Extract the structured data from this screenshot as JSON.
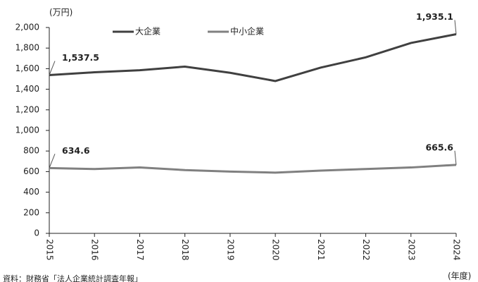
{
  "chart_data": {
    "type": "line",
    "y_unit_label": "(万円)",
    "x_unit_label": "(年度)",
    "source": "資料：財務省「法人企業統計調査年報」",
    "categories": [
      "2015",
      "2016",
      "2017",
      "2018",
      "2019",
      "2020",
      "2021",
      "2022",
      "2023",
      "2024"
    ],
    "series": [
      {
        "name": "大企業",
        "color": "#404040",
        "values": [
          1537.5,
          1565,
          1585,
          1620,
          1560,
          1480,
          1610,
          1710,
          1850,
          1935.1
        ],
        "value_labels": [
          "1,537.5",
          null,
          null,
          null,
          null,
          null,
          null,
          null,
          null,
          "1,935.1"
        ]
      },
      {
        "name": "中小企業",
        "color": "#808080",
        "values": [
          634.6,
          625,
          640,
          615,
          600,
          590,
          610,
          625,
          640,
          665.6
        ],
        "value_labels": [
          "634.6",
          null,
          null,
          null,
          null,
          null,
          null,
          null,
          null,
          "665.6"
        ]
      }
    ],
    "ylim": [
      0,
      2000
    ],
    "yticks": [
      0,
      200,
      400,
      600,
      800,
      {
        "value": 1000,
        "label": "1,000"
      },
      {
        "value": 1200,
        "label": "1,200"
      },
      {
        "value": 1400,
        "label": "1,400"
      },
      {
        "value": 1600,
        "label": "1,600"
      },
      {
        "value": 1800,
        "label": "1,800"
      },
      {
        "value": 2000,
        "label": "2,000"
      }
    ],
    "grid": false
  }
}
